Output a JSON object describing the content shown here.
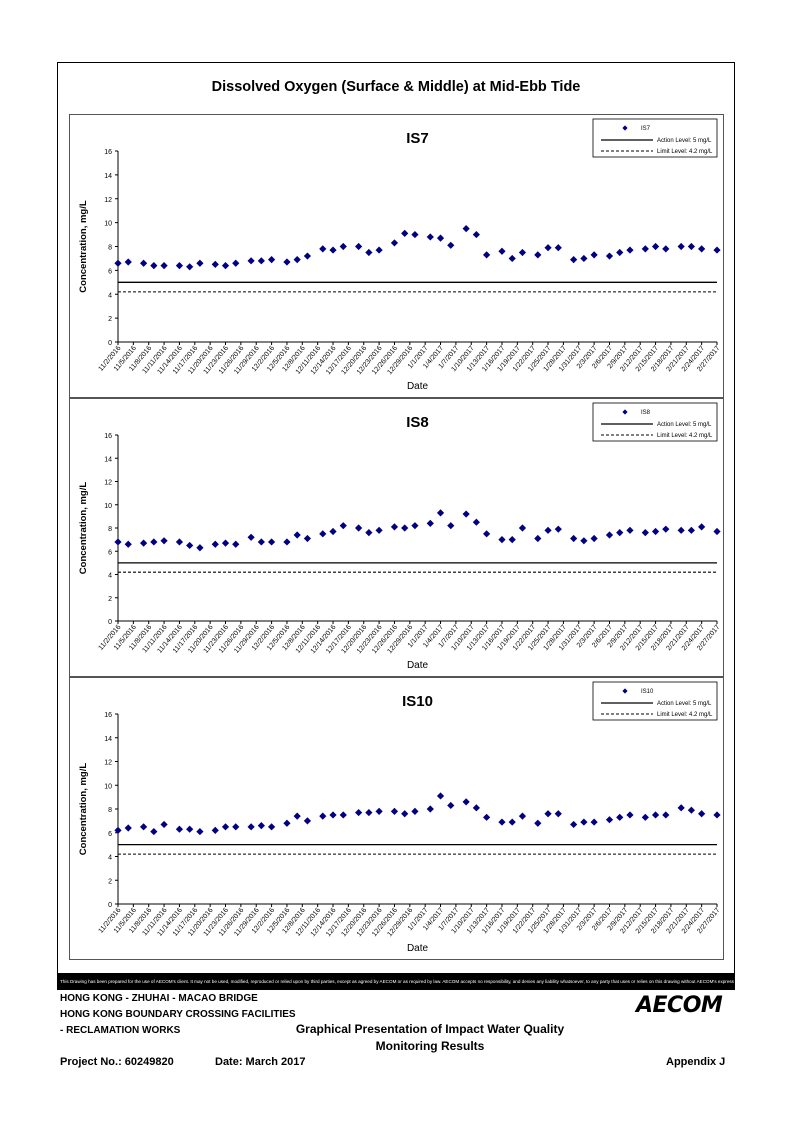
{
  "page": {
    "main_title": "Dissolved Oxygen (Surface & Middle) at Mid-Ebb Tide",
    "disclaimer": "This Drawing has been prepared for the use of AECOM's client. It may not be used, modified, reproduced or relied upon by third parties, except as agreed by AECOM or as required by law. AECOM accepts no responsibility, and denies any liability whatsoever, to any party that uses or relies on this drawing without AECOM's express written consent.",
    "footer": {
      "line1": "HONG KONG - ZHUHAI - MACAO BRIDGE",
      "line2": "HONG KONG BOUNDARY CROSSING FACILITIES",
      "line3": "- RECLAMATION WORKS",
      "subtitle1": "Graphical Presentation of Impact Water Quality",
      "subtitle2": "Monitoring Results",
      "project": "Project No.: 60249820",
      "date": "Date: March 2017",
      "appendix": "Appendix J",
      "logo": "AECOM"
    }
  },
  "chart_data": [
    {
      "type": "scatter",
      "title": "IS7",
      "xlabel": "Date",
      "ylabel": "Concentration, mg/L",
      "ylim": [
        0,
        16
      ],
      "yticks": [
        0,
        2,
        4,
        6,
        8,
        10,
        12,
        14,
        16
      ],
      "xticks": [
        "11/2/2016",
        "11/5/2016",
        "11/8/2016",
        "11/11/2016",
        "11/14/2016",
        "11/17/2016",
        "11/20/2016",
        "11/23/2016",
        "11/26/2016",
        "11/29/2016",
        "12/2/2016",
        "12/5/2016",
        "12/8/2016",
        "12/11/2016",
        "12/14/2016",
        "12/17/2016",
        "12/20/2016",
        "12/23/2016",
        "12/26/2016",
        "12/29/2016",
        "1/1/2017",
        "1/4/2017",
        "1/7/2017",
        "1/10/2017",
        "1/13/2017",
        "1/16/2017",
        "1/19/2017",
        "1/22/2017",
        "1/25/2017",
        "1/28/2017",
        "1/31/2017",
        "2/3/2017",
        "2/6/2017",
        "2/9/2017",
        "2/12/2017",
        "2/15/2017",
        "2/18/2017",
        "2/21/2017",
        "2/24/2017",
        "2/27/2017"
      ],
      "x": [
        "11/2/2016",
        "11/3/2016",
        "11/5/2016",
        "11/6/2016",
        "11/7/2016",
        "11/9/2016",
        "11/10/2016",
        "11/12/2016",
        "11/13/2016",
        "11/15/2016",
        "11/16/2016",
        "11/17/2016",
        "11/19/2016",
        "11/20/2016",
        "11/21/2016",
        "11/23/2016",
        "11/24/2016",
        "11/25/2016",
        "11/27/2016",
        "11/28/2016",
        "11/29/2016",
        "12/1/2016",
        "12/2/2016",
        "12/3/2016",
        "12/5/2016",
        "12/6/2016",
        "12/7/2016",
        "12/9/2016",
        "12/10/2016",
        "12/12/2016",
        "12/13/2016",
        "12/14/2016",
        "12/16/2016",
        "12/17/2016",
        "12/19/2016",
        "12/20/2016",
        "12/21/2016",
        "12/23/2016",
        "12/24/2016",
        "12/26/2016",
        "12/27/2016",
        "12/28/2016",
        "12/30/2016",
        "12/31/2016",
        "1/2/2017",
        "1/3/2017",
        "1/4/2017",
        "1/6/2017",
        "1/7/2017",
        "1/9/2017",
        "1/10/2017",
        "1/11/2017",
        "1/13/2017",
        "1/14/2017",
        "1/16/2017",
        "1/17/2017",
        "1/18/2017",
        "1/20/2017",
        "1/21/2017",
        "1/23/2017",
        "1/24/2017",
        "1/25/2017",
        "1/27/2017",
        "1/28/2017",
        "1/30/2017",
        "1/31/2017",
        "2/1/2017",
        "2/3/2017",
        "2/4/2017",
        "2/6/2017",
        "2/7/2017",
        "2/8/2017",
        "2/10/2017",
        "2/11/2017",
        "2/13/2017",
        "2/14/2017",
        "2/15/2017",
        "2/17/2017",
        "2/18/2017",
        "2/20/2017",
        "2/21/2017",
        "2/22/2017",
        "2/24/2017",
        "2/25/2017",
        "2/27/2017"
      ],
      "placeholder": true,
      "series": [
        {
          "name": "IS7",
          "values": []
        }
      ],
      "action_level": 5,
      "limit_level": 4.2,
      "legend": [
        "IS7",
        "Action Level: 5 mg/L",
        "Limit Level: 4.2 mg/L"
      ],
      "legend_position": "top-right"
    }
  ]
}
